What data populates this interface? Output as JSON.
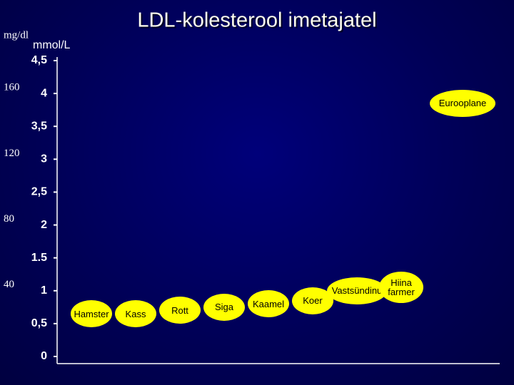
{
  "chart_data": {
    "type": "bubble",
    "title": "LDL-kolesterool imetajatel",
    "y_label": "mmol/L",
    "y2_label": "mg/dl",
    "categories": [
      "Hamster",
      "Kass",
      "Rott",
      "Siga",
      "Kaamel",
      "Koer",
      "Vastsündinu",
      "Hiina farmer",
      "Eurooplane"
    ],
    "values": [
      0.65,
      0.65,
      0.7,
      0.75,
      0.8,
      0.85,
      1.0,
      1.05,
      3.85
    ],
    "color": "#ffff00",
    "ylim": [
      0,
      4.5
    ],
    "yticks": [
      0,
      {
        "value": 0.5,
        "label": "0,5"
      },
      1,
      1.5,
      2,
      {
        "value": 2.5,
        "label": "2,5"
      },
      3,
      {
        "value": 3.5,
        "label": "3,5"
      },
      4,
      {
        "value": 4.5,
        "label": "4,5"
      }
    ],
    "y2lim": [
      0,
      180
    ],
    "y2ticks": [
      40,
      80,
      120,
      160
    ]
  }
}
